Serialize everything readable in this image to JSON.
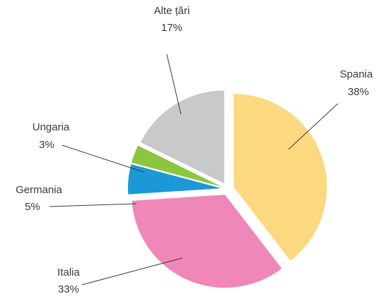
{
  "chart_data": {
    "type": "pie",
    "title": "",
    "slices": [
      {
        "name": "Spania",
        "value": 38,
        "label": "38%",
        "color": "#fcd880"
      },
      {
        "name": "Italia",
        "value": 33,
        "label": "33%",
        "color": "#ef88b8"
      },
      {
        "name": "Germania",
        "value": 5,
        "label": "5%",
        "color": "#1c98d6"
      },
      {
        "name": "Ungaria",
        "value": 3,
        "label": "3%",
        "color": "#8cc63e"
      },
      {
        "name": "Alte țări",
        "value": 17,
        "label": "17%",
        "color": "#c8c9cb"
      }
    ],
    "legend": "none",
    "exploded": true
  }
}
